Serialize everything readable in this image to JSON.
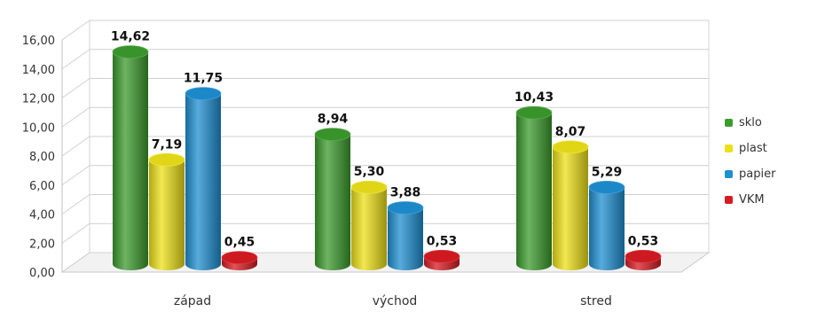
{
  "chart_data": {
    "type": "bar",
    "categories": [
      "západ",
      "východ",
      "stred"
    ],
    "series": [
      {
        "name": "sklo",
        "color": "#3c9b2d",
        "values": [
          14.62,
          8.94,
          10.43
        ],
        "labels": [
          "14,62",
          "8,94",
          "10,43"
        ]
      },
      {
        "name": "plast",
        "color": "#ede018",
        "values": [
          7.19,
          5.3,
          8.07
        ],
        "labels": [
          "7,19",
          "5,30",
          "8,07"
        ]
      },
      {
        "name": "papier",
        "color": "#1f8fd1",
        "values": [
          11.75,
          3.88,
          5.29
        ],
        "labels": [
          "11,75",
          "3,88",
          "5,29"
        ]
      },
      {
        "name": "VKM",
        "color": "#d81a22",
        "values": [
          0.45,
          0.53,
          0.53
        ],
        "labels": [
          "0,45",
          "0,53",
          "0,53"
        ]
      }
    ],
    "y_ticks": [
      "0,00",
      "2,00",
      "4,00",
      "6,00",
      "8,00",
      "10,00",
      "12,00",
      "14,00",
      "16,00"
    ],
    "ylim": [
      0,
      16
    ],
    "grid": true,
    "legend_position": "right",
    "style": "3d-cylinder"
  }
}
